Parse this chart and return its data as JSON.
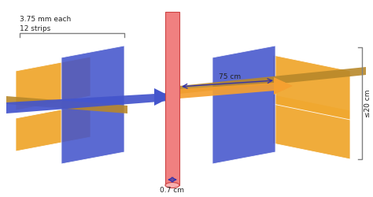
{
  "bg_color": "#ffffff",
  "blue_color": "#4455cc",
  "gold_color": "#f0a830",
  "dark_gold_color": "#b8882a",
  "pink_color": "#f08080",
  "pink_dark": "#cc4444",
  "arrow_color": "#3333aa",
  "text_color": "#222222",
  "label_07": "0.7 cm",
  "label_75": "75 cm",
  "label_20": "≤20 cm",
  "label_strips": "12 strips",
  "label_width": "3.75 mm each"
}
